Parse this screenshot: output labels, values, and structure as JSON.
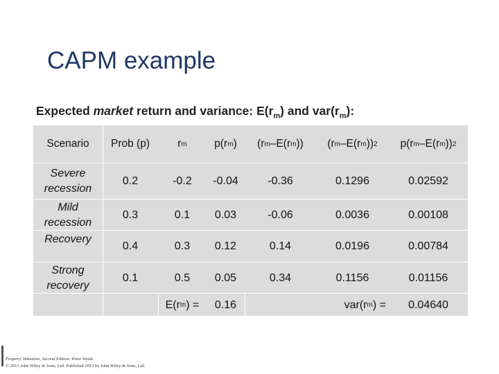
{
  "slide": {
    "title": "CAPM example",
    "subtitle": {
      "before_italic": "Expected ",
      "italic": "market",
      "after_italic": " return and variance: E(r",
      "sub1": "m",
      "middle": ") and var(r",
      "sub2": "m",
      "end": "):"
    }
  },
  "table": {
    "headers": {
      "scenario": "Scenario",
      "prob": "Prob (p)",
      "rm_main": "r",
      "rm_sub": "m",
      "p_rm_main": "p(r",
      "p_rm_sub": "m",
      "p_rm_end": ")",
      "dev_a": "(r",
      "dev_b": "m",
      "dev_c": " –E(r",
      "dev_d": "m",
      "dev_e": "))",
      "sq_a": "(r",
      "sq_b": "m",
      "sq_c": " –E(r",
      "sq_d": "m",
      "sq_e": "))",
      "sq_sup": "2",
      "psq_a": "p(r",
      "psq_b": "m",
      "psq_c": " –E(r",
      "psq_d": "m",
      "psq_e": "))",
      "psq_sup": "2"
    },
    "rows": [
      {
        "scenario": "Severe recession",
        "prob": "0.2",
        "rm": "-0.2",
        "p_rm": "-0.04",
        "dev": "-0.36",
        "dev_sq": "0.1296",
        "p_dev_sq": "0.02592"
      },
      {
        "scenario": "Mild recession",
        "prob": "0.3",
        "rm": "0.1",
        "p_rm": "0.03",
        "dev": "-0.06",
        "dev_sq": "0.0036",
        "p_dev_sq": "0.00108"
      },
      {
        "scenario": "Recovery",
        "prob": "0.4",
        "rm": "0.3",
        "p_rm": "0.12",
        "dev": "0.14",
        "dev_sq": "0.0196",
        "p_dev_sq": "0.00784"
      },
      {
        "scenario": "Strong recovery",
        "prob": "0.1",
        "rm": "0.5",
        "p_rm": "0.05",
        "dev": "0.34",
        "dev_sq": "0.1156",
        "p_dev_sq": "0.01156"
      }
    ],
    "summary": {
      "erm_a": "E(r",
      "erm_b": "m",
      "erm_c": ") =",
      "erm_value": "0.16",
      "var_a": "var(r",
      "var_b": "m",
      "var_c": ") =",
      "var_value": "0.04640"
    }
  },
  "footer": {
    "line1": "Property Valuation, Second Edition. Peter Wyatt.",
    "line2": "© 2013 John Wiley & Sons, Ltd. Published 2013 by John Wiley & Sons, Ltd."
  }
}
